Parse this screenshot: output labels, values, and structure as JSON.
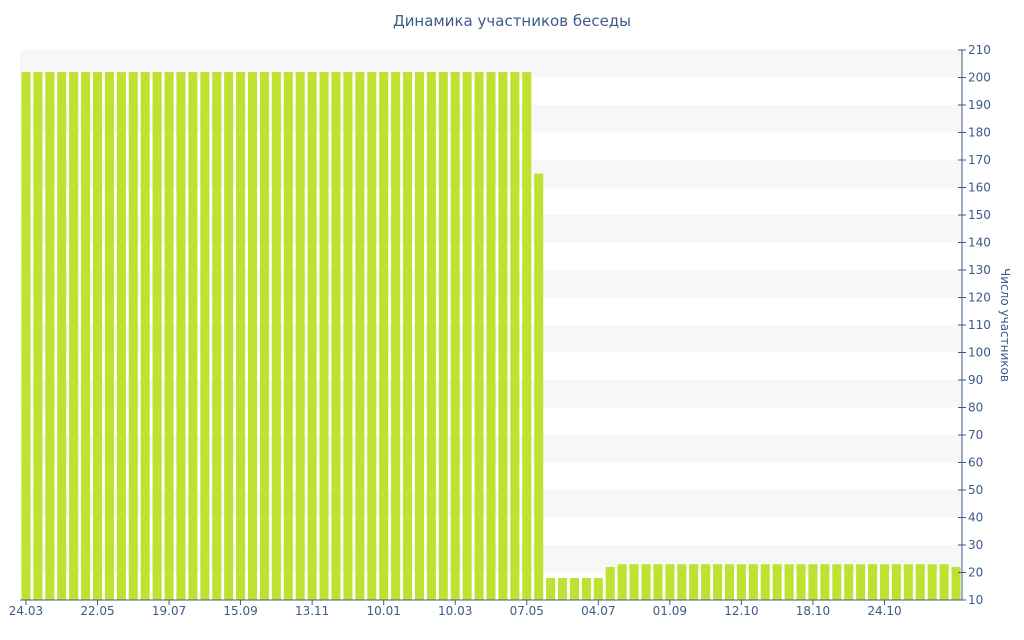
{
  "chart_data": {
    "type": "bar",
    "title": "Динамика участников беседы",
    "ylabel": "Число участников",
    "xlabel": "",
    "ylim": [
      10,
      210
    ],
    "y_ticks": [
      10,
      20,
      30,
      40,
      50,
      60,
      70,
      80,
      90,
      100,
      110,
      120,
      130,
      140,
      150,
      160,
      170,
      180,
      190,
      200,
      210
    ],
    "y_axis_position": "right",
    "x_tick_labels": [
      "24.03",
      "22.05",
      "19.07",
      "15.09",
      "13.11",
      "10.01",
      "10.03",
      "07.05",
      "04.07",
      "01.09",
      "12.10",
      "18.10",
      "24.10"
    ],
    "values": [
      202,
      202,
      202,
      202,
      202,
      202,
      202,
      202,
      202,
      202,
      202,
      202,
      202,
      202,
      202,
      202,
      202,
      202,
      202,
      202,
      202,
      202,
      202,
      202,
      202,
      202,
      202,
      202,
      202,
      202,
      202,
      202,
      202,
      202,
      202,
      202,
      202,
      202,
      202,
      202,
      202,
      202,
      202,
      165,
      18,
      18,
      18,
      18,
      18,
      22,
      23,
      23,
      23,
      23,
      23,
      23,
      23,
      23,
      23,
      23,
      23,
      23,
      23,
      23,
      23,
      23,
      23,
      23,
      23,
      23,
      23,
      23,
      23,
      23,
      23,
      23,
      23,
      23,
      22
    ],
    "bar_color": "#bfe132",
    "stripe_color": "#f7f7f7",
    "axis_color": "#3d5a8a"
  }
}
